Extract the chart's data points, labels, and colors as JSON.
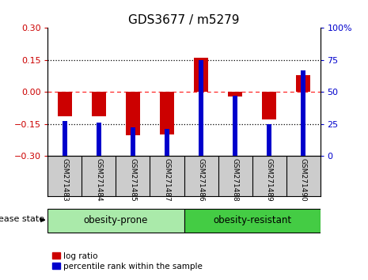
{
  "title": "GDS3677 / m5279",
  "samples": [
    "GSM271483",
    "GSM271484",
    "GSM271485",
    "GSM271487",
    "GSM271486",
    "GSM271488",
    "GSM271489",
    "GSM271490"
  ],
  "log_ratio": [
    -0.115,
    -0.115,
    -0.205,
    -0.2,
    0.162,
    -0.02,
    -0.13,
    0.08
  ],
  "percentile_rank": [
    27,
    26,
    22,
    21,
    75,
    47,
    25,
    67
  ],
  "groups": [
    {
      "label": "obesity-prone",
      "start": 0,
      "end": 3,
      "color": "#AAEAAA"
    },
    {
      "label": "obesity-resistant",
      "start": 4,
      "end": 7,
      "color": "#44CC44"
    }
  ],
  "ylim_left": [
    -0.3,
    0.3
  ],
  "ylim_right": [
    0,
    100
  ],
  "yticks_left": [
    -0.3,
    -0.15,
    0,
    0.15,
    0.3
  ],
  "yticks_right": [
    0,
    25,
    50,
    75,
    100
  ],
  "bar_color_red": "#CC0000",
  "bar_color_blue": "#0000CC",
  "left_tick_color": "#CC0000",
  "right_tick_color": "#0000CC",
  "background_color": "#FFFFFF",
  "label_bg": "#CCCCCC",
  "red_bar_width": 0.4,
  "blue_bar_width": 0.15
}
